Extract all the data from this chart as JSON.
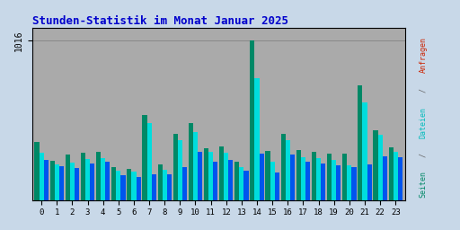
{
  "title": "Stunden-Statistik im Monat Januar 2025",
  "hours": [
    0,
    1,
    2,
    3,
    4,
    5,
    6,
    7,
    8,
    9,
    10,
    11,
    12,
    13,
    14,
    15,
    16,
    17,
    18,
    19,
    20,
    21,
    22,
    23
  ],
  "seiten": [
    370,
    250,
    290,
    300,
    310,
    210,
    200,
    540,
    230,
    420,
    490,
    330,
    340,
    245,
    1020,
    315,
    420,
    320,
    310,
    295,
    295,
    730,
    445,
    335
  ],
  "dateien": [
    300,
    230,
    240,
    260,
    270,
    185,
    180,
    490,
    195,
    385,
    435,
    305,
    300,
    210,
    780,
    245,
    380,
    275,
    265,
    255,
    220,
    625,
    415,
    305
  ],
  "anfragen": [
    255,
    215,
    205,
    235,
    245,
    160,
    150,
    165,
    165,
    210,
    305,
    245,
    255,
    185,
    295,
    175,
    290,
    245,
    235,
    220,
    210,
    225,
    280,
    275
  ],
  "color_seiten": "#008866",
  "color_dateien": "#00dddd",
  "color_anfragen": "#0055ee",
  "fig_facecolor": "#c8d8e8",
  "plot_bg": "#aaaaaa",
  "grid_color": "#888888",
  "title_color": "#0000cc",
  "ylim": [
    0,
    1100
  ],
  "bar_width": 0.3,
  "right_seiten_color": "#008866",
  "right_dateien_color": "#00bbbb",
  "right_anfragen_color": "#cc2200"
}
